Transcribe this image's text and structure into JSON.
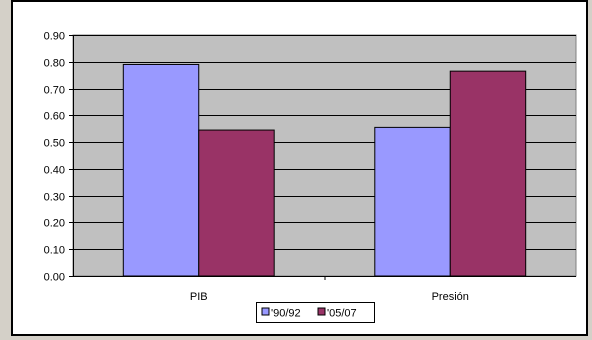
{
  "chart_data": {
    "type": "bar",
    "title": "",
    "xlabel": "",
    "ylabel": "",
    "categories": [
      "PIB",
      "Presión"
    ],
    "series": [
      {
        "name": "'90/92",
        "values": [
          0.79,
          0.555
        ],
        "color": "#9999ff"
      },
      {
        "name": "'05/07",
        "values": [
          0.545,
          0.765
        ],
        "color": "#993366"
      }
    ],
    "ylim": [
      0,
      0.9
    ],
    "yticks": [
      "0.00",
      "0.10",
      "0.20",
      "0.30",
      "0.40",
      "0.50",
      "0.60",
      "0.70",
      "0.80",
      "0.90"
    ],
    "grid": true,
    "legend_position": "bottom",
    "plot_background": "#c0c0c0",
    "frame_background": "#d4d0c8"
  }
}
